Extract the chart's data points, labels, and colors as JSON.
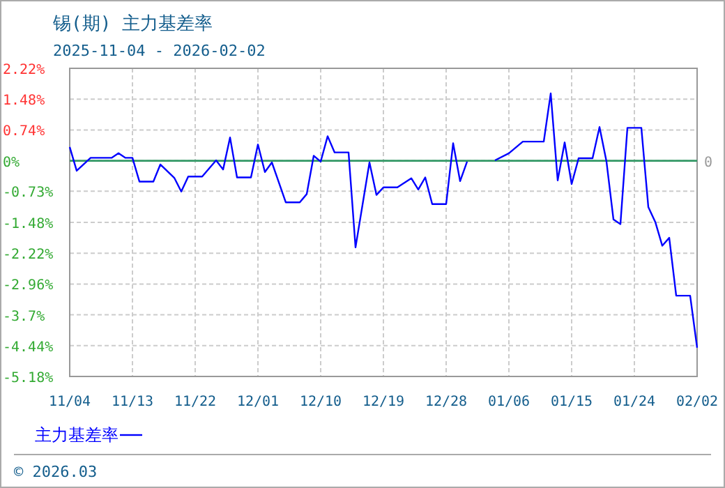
{
  "chart_data": {
    "type": "line",
    "title": "锡(期) 主力基差率",
    "subtitle": "2025-11-04 - 2026-02-02",
    "series": [
      {
        "name": "主力基差率",
        "color": "#0000ff",
        "x": [
          "2025-11-04",
          "2025-11-05",
          "2025-11-07",
          "2025-11-10",
          "2025-11-11",
          "2025-11-12",
          "2025-11-13",
          "2025-11-14",
          "2025-11-16",
          "2025-11-17",
          "2025-11-19",
          "2025-11-20",
          "2025-11-21",
          "2025-11-23",
          "2025-11-25",
          "2025-11-26",
          "2025-11-27",
          "2025-11-28",
          "2025-11-30",
          "2025-12-01",
          "2025-12-02",
          "2025-12-03",
          "2025-12-05",
          "2025-12-07",
          "2025-12-08",
          "2025-12-09",
          "2025-12-10",
          "2025-12-11",
          "2025-12-12",
          "2025-12-14",
          "2025-12-15",
          "2025-12-17",
          "2025-12-18",
          "2025-12-19",
          "2025-12-21",
          "2025-12-23",
          "2025-12-24",
          "2025-12-25",
          "2025-12-26",
          "2025-12-28",
          "2025-12-29",
          "2025-12-30",
          "2025-12-31"
        ],
        "values": [
          0.33,
          -0.24,
          0.07,
          0.07,
          0.18,
          0.07,
          0.07,
          -0.5,
          -0.5,
          -0.09,
          -0.41,
          -0.74,
          -0.38,
          -0.38,
          0.01,
          -0.21,
          0.56,
          -0.4,
          -0.4,
          0.39,
          -0.27,
          -0.04,
          -1.0,
          -1.0,
          -0.8,
          0.12,
          -0.02,
          0.59,
          0.2,
          0.2,
          -2.08,
          -0.04,
          -0.82,
          -0.64,
          -0.64,
          -0.42,
          -0.69,
          -0.4,
          -1.04,
          -1.04,
          0.42,
          -0.49,
          -0.02
        ]
      },
      {
        "color": "#0000ff",
        "x": [
          "2026-01-04",
          "2026-01-06",
          "2026-01-08",
          "2026-01-11",
          "2026-01-12",
          "2026-01-13",
          "2026-01-14",
          "2026-01-15",
          "2026-01-16",
          "2026-01-18",
          "2026-01-19",
          "2026-01-20",
          "2026-01-21",
          "2026-01-22",
          "2026-01-23",
          "2026-01-25",
          "2026-01-26",
          "2026-01-27",
          "2026-01-28",
          "2026-01-29",
          "2026-01-30",
          "2026-02-01",
          "2026-02-02"
        ],
        "values": [
          0.01,
          0.18,
          0.46,
          0.46,
          1.62,
          -0.47,
          0.44,
          -0.56,
          0.06,
          0.06,
          0.81,
          -0.02,
          -1.41,
          -1.52,
          0.79,
          0.79,
          -1.11,
          -1.47,
          -2.04,
          -1.85,
          -3.24,
          -3.24,
          -4.49
        ]
      }
    ],
    "xlim": [
      "2025-11-04",
      "2026-02-02"
    ],
    "xticks": [
      {
        "value": "2025-11-04",
        "label": "11/04"
      },
      {
        "value": "2025-11-13",
        "label": "11/13"
      },
      {
        "value": "2025-11-22",
        "label": "11/22"
      },
      {
        "value": "2025-12-01",
        "label": "12/01"
      },
      {
        "value": "2025-12-10",
        "label": "12/10"
      },
      {
        "value": "2025-12-19",
        "label": "12/19"
      },
      {
        "value": "2025-12-28",
        "label": "12/28"
      },
      {
        "value": "2026-01-06",
        "label": "01/06"
      },
      {
        "value": "2026-01-15",
        "label": "01/15"
      },
      {
        "value": "2026-01-24",
        "label": "01/24"
      },
      {
        "value": "2026-02-02",
        "label": "02/02"
      }
    ],
    "ylim": [
      -5.18,
      2.22
    ],
    "yticks": [
      {
        "value": 2.22,
        "label": "2.22%"
      },
      {
        "value": 1.48,
        "label": "1.48%"
      },
      {
        "value": 0.74,
        "label": "0.74%"
      },
      {
        "value": 0,
        "label": "0%"
      },
      {
        "value": -0.73,
        "label": "-0.73%"
      },
      {
        "value": -1.48,
        "label": "-1.48%"
      },
      {
        "value": -2.22,
        "label": "-2.22%"
      },
      {
        "value": -2.96,
        "label": "-2.96%"
      },
      {
        "value": -3.7,
        "label": "-3.7%"
      },
      {
        "value": -4.44,
        "label": "-4.44%"
      },
      {
        "value": -5.18,
        "label": "-5.18%"
      }
    ],
    "ref_lines": [
      {
        "axis": "y",
        "value": 0,
        "label": "0",
        "color": "#339966"
      }
    ],
    "grid": true,
    "legend": "bottom",
    "line_style": "solid",
    "annotations": [
      "© 2026.03"
    ]
  }
}
